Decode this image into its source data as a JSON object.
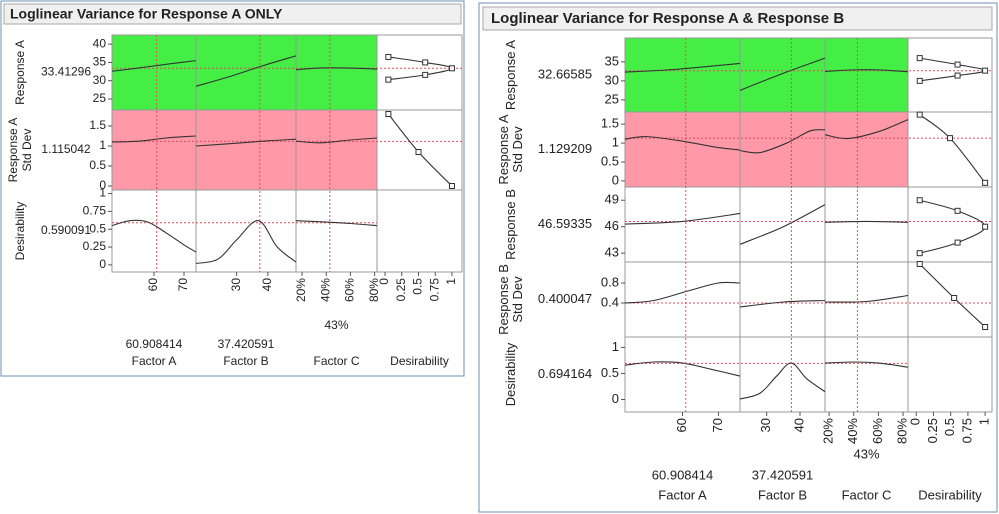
{
  "panels": [
    {
      "title": "Loglinear Variance for Response A ONLY",
      "desirability_label": "Desirability",
      "desirability_xlim": [
        -0.12,
        1.15
      ],
      "desirability_xticks": [
        0,
        0.25,
        0.5,
        0.75,
        1
      ],
      "factors": [
        {
          "name": "Factor A",
          "current": 60.908414,
          "xlim": [
            46,
            74
          ],
          "xticks": [
            60,
            70
          ]
        },
        {
          "name": "Factor B",
          "current": 37.420591,
          "xlim": [
            17,
            49
          ],
          "xticks": [
            30,
            40
          ]
        },
        {
          "name": "Factor C",
          "current": {
            "value": 43,
            "label": "43%"
          },
          "xlim": [
            15,
            82
          ],
          "xticks": [
            {
              "value": 20,
              "label": "20%"
            },
            {
              "value": 40,
              "label": "40%"
            },
            {
              "value": 60,
              "label": "60%"
            },
            {
              "value": 80,
              "label": "80%"
            }
          ]
        }
      ],
      "responses": [
        {
          "name": "Response A",
          "value": 33.41296,
          "value_color": "#e8485f",
          "bg": "#44ee44",
          "ylim": [
            22,
            42.5
          ],
          "yticks": [
            25,
            30,
            35,
            40
          ],
          "curves": [
            {
              "x": [
                46,
                55,
                64,
                74
              ],
              "y": [
                32.6,
                33.5,
                34.5,
                35.5
              ]
            },
            {
              "x": [
                17,
                28,
                38,
                49
              ],
              "y": [
                28.5,
                31.2,
                34,
                36.8
              ]
            },
            {
              "x": [
                15,
                35,
                55,
                82
              ],
              "y": [
                33,
                33.5,
                33.5,
                33.2
              ]
            }
          ],
          "desirability_fn": {
            "d": [
              0.05,
              0.6,
              1,
              0.6,
              0.05
            ],
            "y": [
              36.5,
              35,
              33.4,
              31.6,
              30.3
            ]
          }
        },
        {
          "name": "Response A Std Dev",
          "value": 1.115042,
          "value_color": "#e8485f",
          "bg": "#ff99a8",
          "ylim": [
            -0.1,
            1.9
          ],
          "yticks": [
            0,
            0.5,
            1,
            1.5
          ],
          "curves": [
            {
              "x": [
                46,
                55,
                64,
                74
              ],
              "y": [
                1.1,
                1.12,
                1.2,
                1.25
              ]
            },
            {
              "x": [
                17,
                30,
                40,
                49
              ],
              "y": [
                1.0,
                1.07,
                1.13,
                1.17
              ]
            },
            {
              "x": [
                15,
                35,
                60,
                82
              ],
              "y": [
                1.12,
                1.08,
                1.15,
                1.2
              ]
            }
          ],
          "desirability_fn": {
            "d": [
              0.05,
              0.5,
              1
            ],
            "y": [
              1.8,
              0.85,
              0
            ]
          }
        },
        {
          "name": "Desirability",
          "value": 0.590091,
          "value_color": "#000000",
          "bg": "#ffffff",
          "ylim": [
            -0.1,
            1.05
          ],
          "yticks": [
            0,
            0.25,
            0.5,
            0.75,
            1
          ],
          "curves": [
            {
              "x": [
                46,
                52,
                58,
                64,
                70,
                74
              ],
              "y": [
                0.55,
                0.62,
                0.6,
                0.45,
                0.28,
                0.18
              ]
            },
            {
              "x": [
                17,
                24,
                30,
                37,
                43,
                49
              ],
              "y": [
                0.02,
                0.08,
                0.35,
                0.62,
                0.25,
                0.04
              ]
            },
            {
              "x": [
                15,
                40,
                60,
                82
              ],
              "y": [
                0.62,
                0.6,
                0.58,
                0.55
              ]
            }
          ]
        }
      ]
    },
    {
      "title": "Loglinear Variance for Response A & Response B",
      "desirability_label": "Desirability",
      "desirability_xlim": [
        -0.12,
        1.1
      ],
      "desirability_xticks": [
        0,
        0.25,
        0.5,
        0.75,
        1
      ],
      "factors": [
        {
          "name": "Factor A",
          "current": 60.908414,
          "xlim": [
            44,
            76
          ],
          "xticks": [
            60,
            70
          ]
        },
        {
          "name": "Factor B",
          "current": 37.420591,
          "xlim": [
            22,
            47.5
          ],
          "xticks": [
            30,
            40
          ]
        },
        {
          "name": "Factor C",
          "current": {
            "value": 43,
            "label": "43%"
          },
          "xlim": [
            16.7,
            84
          ],
          "xticks": [
            {
              "value": 20,
              "label": "20%"
            },
            {
              "value": 40,
              "label": "40%"
            },
            {
              "value": 60,
              "label": "60%"
            },
            {
              "value": 80,
              "label": "80%"
            }
          ]
        }
      ],
      "responses": [
        {
          "name": "Response A",
          "value": 32.66585,
          "value_color": "#e8485f",
          "bg": "#44ee44",
          "ylim": [
            21.8,
            41.3
          ],
          "yticks": [
            25,
            30,
            35
          ],
          "curves": [
            {
              "x": [
                44,
                56,
                66,
                76
              ],
              "y": [
                32.3,
                32.9,
                33.7,
                34.6
              ]
            },
            {
              "x": [
                22,
                30,
                38,
                47.5
              ],
              "y": [
                27.5,
                30.3,
                33,
                36
              ]
            },
            {
              "x": [
                16.7,
                40,
                60,
                84
              ],
              "y": [
                32.5,
                32.9,
                32.9,
                32.4
              ]
            }
          ],
          "desirability_fn": {
            "d": [
              0.05,
              0.6,
              1,
              0.6,
              0.05
            ],
            "y": [
              36,
              34.3,
              32.7,
              31.4,
              30
            ]
          }
        },
        {
          "name": "Response A Std Dev",
          "value": 1.129209,
          "value_color": "#e8485f",
          "bg": "#ff99a8",
          "ylim": [
            -0.16,
            1.82
          ],
          "yticks": [
            0,
            0.5,
            1,
            1.5
          ],
          "curves": [
            {
              "x": [
                44,
                50,
                60,
                70,
                76
              ],
              "y": [
                1.1,
                1.17,
                1.05,
                0.88,
                0.82
              ]
            },
            {
              "x": [
                22,
                28,
                36,
                43,
                47.5
              ],
              "y": [
                0.8,
                0.75,
                1.0,
                1.32,
                1.35
              ]
            },
            {
              "x": [
                16.7,
                35,
                60,
                84
              ],
              "y": [
                1.22,
                1.12,
                1.3,
                1.62
              ]
            }
          ],
          "desirability_fn": {
            "d": [
              0.05,
              0.49,
              1
            ],
            "y": [
              1.75,
              1.13,
              -0.05
            ]
          }
        },
        {
          "name": "Response B",
          "value": 46.59335,
          "value_color": "#e8485f",
          "bg": "#ffffff",
          "ylim": [
            42,
            50.5
          ],
          "yticks": [
            43,
            46,
            49
          ],
          "curves": [
            {
              "x": [
                44,
                60,
                76
              ],
              "y": [
                46.3,
                46.6,
                47.5
              ]
            },
            {
              "x": [
                22,
                35,
                47.5
              ],
              "y": [
                44,
                46,
                48.5
              ]
            },
            {
              "x": [
                16.7,
                50,
                84
              ],
              "y": [
                46.5,
                46.6,
                46.5
              ]
            }
          ],
          "desirability_fn": {
            "d": [
              0.05,
              0.6,
              1,
              0.6,
              0.05
            ],
            "y": [
              49,
              47.8,
              46,
              44.2,
              43
            ]
          }
        },
        {
          "name": "Response B Std Dev",
          "value": 0.400047,
          "value_color": "#e8485f",
          "bg": "#ffffff",
          "ylim": [
            -0.28,
            1.22
          ],
          "yticks": [
            0.4,
            0.8
          ],
          "curves": [
            {
              "x": [
                44,
                52,
                62,
                70,
                76
              ],
              "y": [
                0.4,
                0.45,
                0.65,
                0.8,
                0.8
              ]
            },
            {
              "x": [
                22,
                35,
                47.5
              ],
              "y": [
                0.32,
                0.42,
                0.45
              ]
            },
            {
              "x": [
                16.7,
                50,
                84
              ],
              "y": [
                0.42,
                0.43,
                0.55
              ]
            }
          ],
          "desirability_fn": {
            "d": [
              0.05,
              0.55,
              1
            ],
            "y": [
              1.18,
              0.5,
              -0.08
            ]
          }
        },
        {
          "name": "Desirability",
          "value": 0.694164,
          "value_color": "#000000",
          "bg": "#ffffff",
          "ylim": [
            -0.24,
            1.2
          ],
          "yticks": [
            0,
            0.5,
            1
          ],
          "curves": [
            {
              "x": [
                44,
                52,
                60,
                68,
                76
              ],
              "y": [
                0.66,
                0.72,
                0.7,
                0.58,
                0.45
              ]
            },
            {
              "x": [
                22,
                28,
                33,
                37.4,
                42,
                47.5
              ],
              "y": [
                0.01,
                0.12,
                0.45,
                0.7,
                0.4,
                0.15
              ]
            },
            {
              "x": [
                16.7,
                40,
                60,
                84
              ],
              "y": [
                0.7,
                0.72,
                0.7,
                0.62
              ]
            }
          ]
        }
      ]
    }
  ]
}
